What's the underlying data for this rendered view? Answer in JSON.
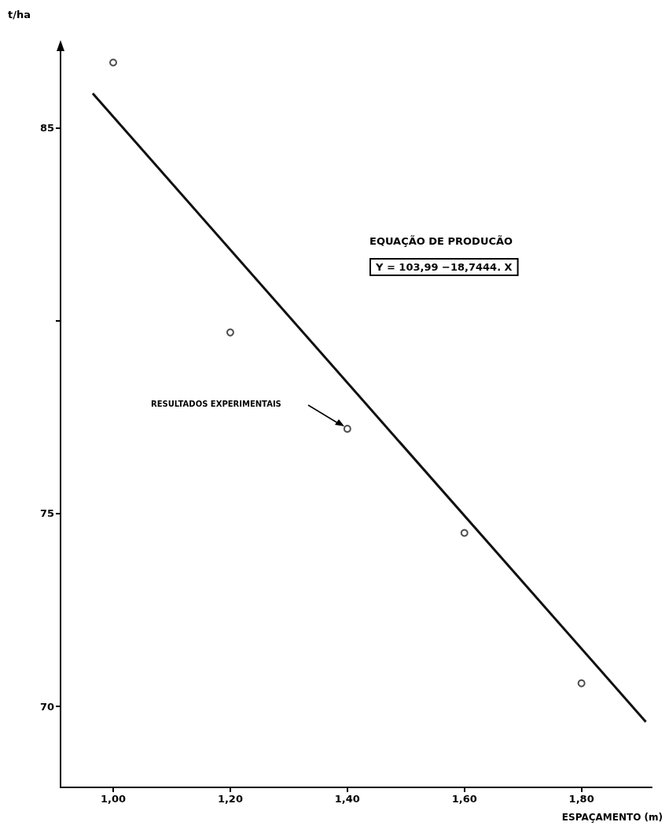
{
  "chart_data": {
    "type": "scatter",
    "xlabel": "ESPAÇAMENTO (m)",
    "ylabel": "t/ha",
    "xlim": [
      0.91,
      1.92
    ],
    "ylim": [
      67.9,
      87.2
    ],
    "xticks": [
      {
        "value": 1,
        "label": "1,00"
      },
      {
        "value": 1.2,
        "label": "1,20"
      },
      {
        "value": 1.4,
        "label": "1,40"
      },
      {
        "value": 1.6,
        "label": "1,60"
      },
      {
        "value": 1.8,
        "label": "1,80"
      }
    ],
    "yticks": [
      70,
      75,
      {
        "value": 80,
        "label": null
      },
      85
    ],
    "grid": false,
    "marker": "circle",
    "series": [
      {
        "color": "#222222",
        "x": [
          1,
          1.2,
          1.4,
          1.6,
          1.8
        ],
        "values": [
          86.7,
          79.7,
          77.2,
          74.5,
          70.6
        ]
      },
      {
        "type": "line",
        "color": "#111111",
        "marker": "none",
        "x": [
          0.965,
          1.91
        ],
        "values": [
          85.9,
          69.6
        ]
      }
    ],
    "annotations": [
      "EQUAÇÃO DE PRODUCÃO",
      "Y = 103,99 −18,7444. X",
      "RESULTADOS EXPERIMENTAIS"
    ]
  }
}
